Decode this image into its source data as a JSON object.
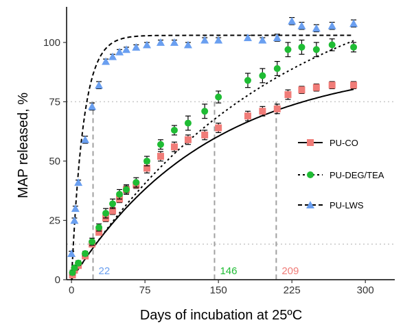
{
  "chart_data": {
    "type": "scatter",
    "xlabel": "Days of incubation at 25ºC",
    "ylabel": "MAP released, %",
    "xlim": [
      -5,
      330
    ],
    "ylim": [
      0,
      115
    ],
    "xticks": [
      0,
      75,
      150,
      225,
      300
    ],
    "yticks": [
      0,
      25,
      50,
      75,
      100
    ],
    "grid": false,
    "reference_lines": [
      {
        "orientation": "horizontal",
        "y": 75,
        "style": "dotted",
        "color": "#c8c8c8"
      },
      {
        "orientation": "horizontal",
        "y": 15,
        "style": "dotted",
        "color": "#c8c8c8"
      }
    ],
    "legend": {
      "position": "right",
      "entries": [
        "PU-CO",
        "PU-DEG/TEA",
        "PU-LWS"
      ]
    },
    "series": [
      {
        "name": "PU-CO",
        "color": "#f07c78",
        "marker": "square",
        "fit_line": "solid",
        "x": [
          1,
          3,
          7,
          14,
          21,
          28,
          35,
          42,
          49,
          56,
          66,
          77,
          91,
          105,
          119,
          136,
          150,
          180,
          195,
          210,
          221,
          235,
          250,
          266,
          288
        ],
        "y": [
          2,
          4,
          6,
          10,
          15,
          20,
          26,
          29,
          34,
          38,
          40,
          47,
          52,
          56,
          59,
          61,
          64,
          69,
          71,
          72,
          78,
          80,
          81,
          82,
          82
        ],
        "err": [
          1,
          1,
          1,
          1,
          1.2,
          1.2,
          1.5,
          1.5,
          1.5,
          1.5,
          1.5,
          2,
          2,
          2,
          2,
          2,
          2,
          2,
          2,
          2,
          2,
          1.5,
          1.5,
          1.5,
          1.5
        ],
        "fit": {
          "plateau": 92,
          "tau": 140,
          "lag": 0
        }
      },
      {
        "name": "PU-DEG/TEA",
        "color": "#1fbc34",
        "marker": "circle",
        "fit_line": "dotted",
        "x": [
          1,
          3,
          7,
          14,
          21,
          28,
          35,
          42,
          49,
          56,
          66,
          77,
          91,
          105,
          119,
          136,
          150,
          180,
          195,
          210,
          221,
          235,
          250,
          266,
          288
        ],
        "y": [
          3,
          5,
          7,
          11,
          16,
          22,
          28,
          32,
          36,
          38,
          41,
          50,
          57,
          63,
          66,
          71,
          77,
          84,
          86,
          89,
          97,
          98,
          97,
          99,
          98
        ],
        "err": [
          1,
          1,
          1,
          1,
          1.5,
          1.5,
          2,
          2,
          2,
          2,
          2,
          2,
          2,
          2,
          3,
          3,
          2.5,
          3,
          3,
          3,
          3,
          3,
          3,
          2.5,
          2
        ],
        "fit": {
          "plateau": 135,
          "tau": 210,
          "lag": 0
        }
      },
      {
        "name": "PU-LWS",
        "color": "#6a9ff0",
        "marker": "triangle",
        "fit_line": "dashed",
        "x": [
          0,
          3,
          4,
          7,
          14,
          21,
          28,
          35,
          42,
          49,
          56,
          66,
          77,
          91,
          105,
          119,
          136,
          150,
          180,
          195,
          210,
          225,
          235,
          250,
          266,
          288
        ],
        "y": [
          11,
          25,
          30,
          41,
          59,
          73,
          82,
          92,
          94,
          96,
          97,
          98,
          99,
          100,
          100,
          99,
          101,
          101,
          102,
          101,
          102,
          109,
          107,
          106,
          107,
          108
        ],
        "err": [
          1,
          1,
          1,
          1,
          1.5,
          1.5,
          1.5,
          1,
          1,
          1,
          1,
          1,
          1,
          1,
          1,
          1,
          1,
          1,
          1,
          1,
          1.5,
          1.5,
          1.5,
          1.5,
          1.5,
          1.5
        ],
        "fit": {
          "plateau": 103,
          "tau": 12,
          "lag": 0
        }
      }
    ],
    "annotations": [
      {
        "text": "22",
        "x": 22,
        "series": "PU-LWS"
      },
      {
        "text": "146",
        "x": 146,
        "series": "PU-DEG/TEA"
      },
      {
        "text": "209",
        "x": 209,
        "series": "PU-CO"
      }
    ]
  }
}
